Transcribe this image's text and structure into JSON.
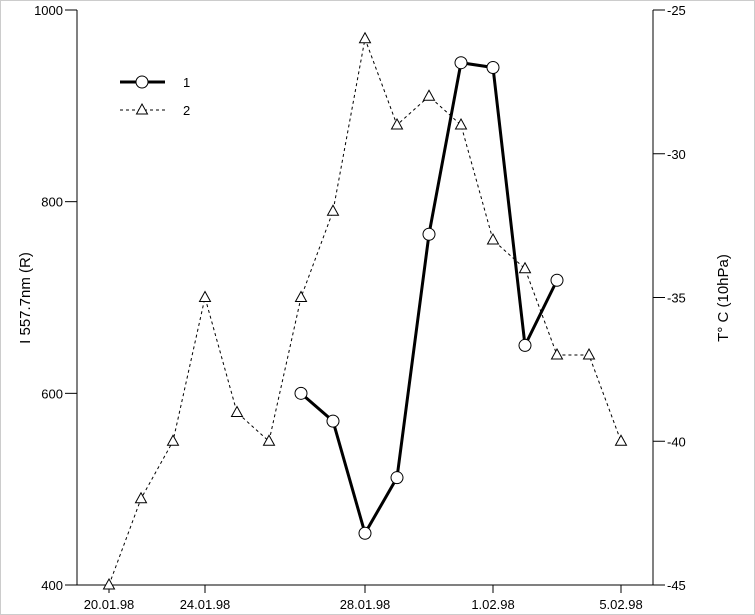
{
  "chart_data": {
    "type": "line",
    "categories": [
      "20.01.98",
      null,
      null,
      "24.01.98",
      null,
      null,
      null,
      null,
      "28.01.98",
      null,
      null,
      null,
      "1.02.98",
      null,
      null,
      null,
      "5.02.98"
    ],
    "ylabel": "I 557.7nm (R)",
    "y2label": "T° C (10hPa)",
    "ylim": [
      400,
      1000
    ],
    "yticks": [
      400,
      600,
      800,
      1000
    ],
    "y2lim": [
      -45,
      -25
    ],
    "y2ticks": [
      -45,
      -40,
      -35,
      -30,
      -25
    ],
    "series": [
      {
        "name": "1",
        "color": "#000000",
        "marker": "circle",
        "values": [
          null,
          null,
          null,
          null,
          null,
          null,
          600,
          571,
          454,
          512,
          766,
          945,
          940,
          650,
          718,
          null,
          null
        ]
      },
      {
        "name": "2",
        "color": "#000000",
        "marker": "triangle",
        "axis": "y2",
        "dashed": true,
        "values": [
          -45,
          -42,
          -40,
          -35,
          -39,
          -40,
          -35,
          -32,
          -26,
          -29,
          -28,
          -29,
          -33,
          -34,
          -37,
          -37,
          -40
        ]
      }
    ]
  }
}
